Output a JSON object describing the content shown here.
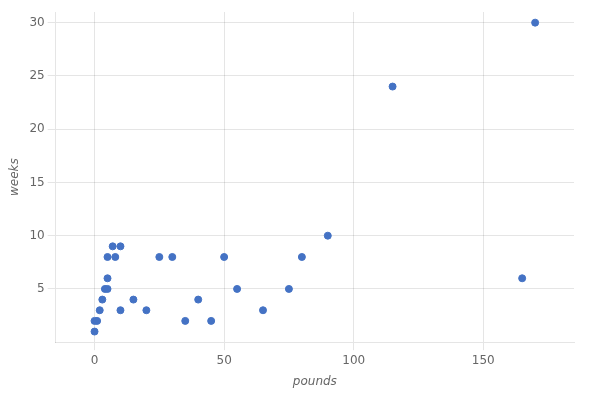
{
  "chart_data": {
    "type": "scatter",
    "x": [
      0,
      0,
      1,
      2,
      3,
      4,
      5,
      5,
      5,
      7,
      8,
      10,
      10,
      15,
      20,
      25,
      30,
      35,
      40,
      45,
      50,
      55,
      65,
      75,
      80,
      90,
      115,
      165,
      170
    ],
    "values": [
      1,
      2,
      2,
      3,
      4,
      5,
      5,
      6,
      8,
      9,
      8,
      3,
      9,
      4,
      3,
      8,
      8,
      2,
      4,
      2,
      8,
      5,
      3,
      5,
      8,
      10,
      24,
      6,
      30
    ],
    "xlabel": "pounds",
    "ylabel": "weeks",
    "color": "#4472c4",
    "xlim": [
      -15,
      185
    ],
    "ylim": [
      0,
      31
    ],
    "xticks": [
      0,
      50,
      100,
      150
    ],
    "yticks": [
      5,
      10,
      15,
      20,
      25,
      30
    ],
    "grid": true
  }
}
